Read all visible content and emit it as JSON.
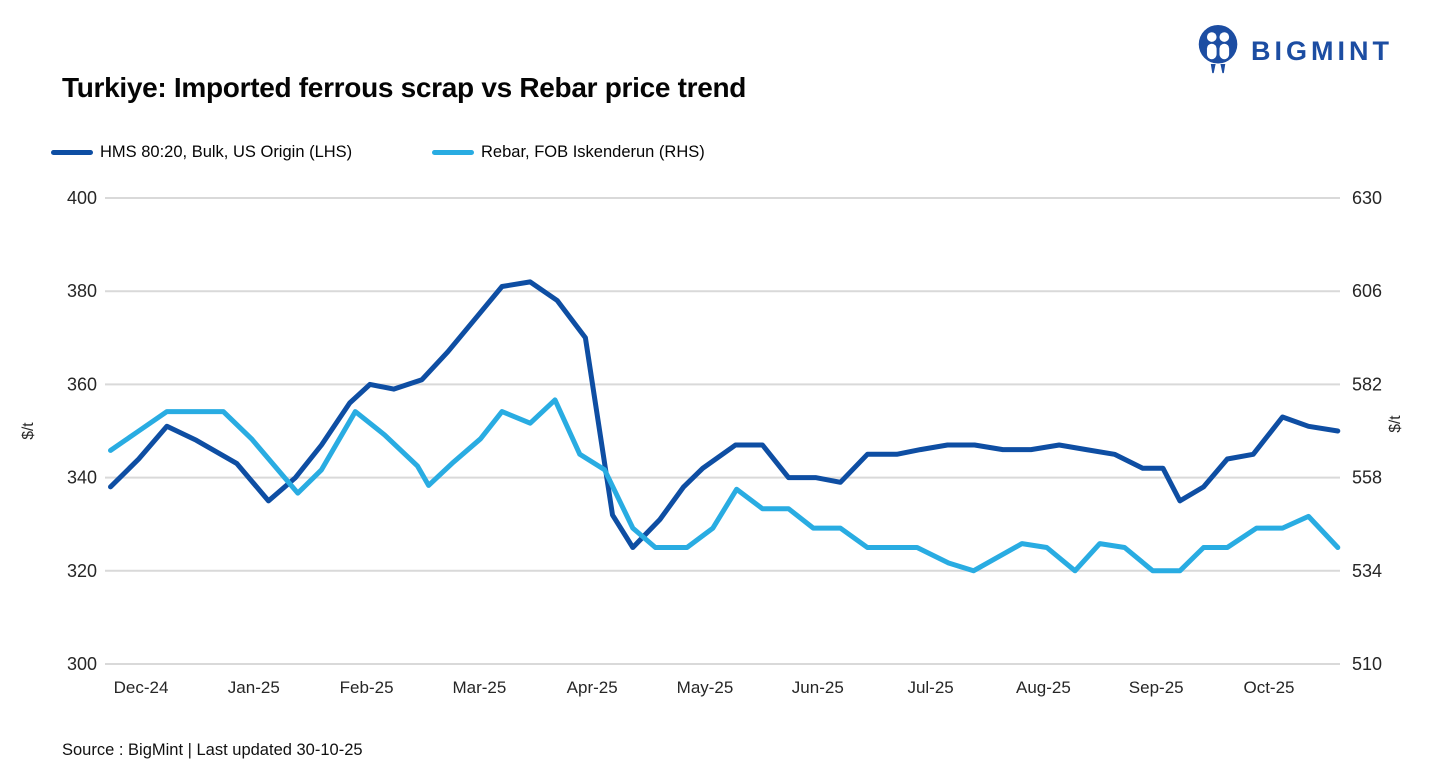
{
  "brand": {
    "name": "BIGMINT",
    "logo_color": "#1C4DA2"
  },
  "title": "Turkiye: Imported ferrous scrap vs Rebar price trend",
  "source": "Source : BigMint | Last updated 30-10-25",
  "chart_data": {
    "type": "line",
    "title": "Turkiye: Imported ferrous scrap vs Rebar price trend",
    "x_unit": "months offset from Dec-24 tick (weekly data points)",
    "x_ticks": [
      "Dec-24",
      "Jan-25",
      "Feb-25",
      "Mar-25",
      "Apr-25",
      "May-25",
      "Jun-25",
      "Jul-25",
      "Aug-25",
      "Sep-25",
      "Oct-25"
    ],
    "grid": true,
    "grid_color": "#D9D9D9",
    "legend_position": "top-left",
    "axes": {
      "left": {
        "label": "$/t",
        "min": 300,
        "max": 400,
        "ticks": [
          400,
          380,
          360,
          340,
          320,
          300
        ]
      },
      "right": {
        "label": "$/t",
        "min": 510,
        "max": 630,
        "ticks": [
          630,
          606,
          582,
          558,
          534,
          510
        ]
      }
    },
    "series": [
      {
        "name": "HMS 80:20, Bulk, US Origin (LHS)",
        "axis": "left",
        "color": "#0E4EA3",
        "points": [
          [
            -0.27,
            338
          ],
          [
            -0.02,
            344
          ],
          [
            0.23,
            351
          ],
          [
            0.49,
            348
          ],
          [
            0.85,
            343
          ],
          [
            1.13,
            335
          ],
          [
            1.37,
            340
          ],
          [
            1.6,
            347
          ],
          [
            1.85,
            356
          ],
          [
            2.03,
            360
          ],
          [
            2.24,
            359
          ],
          [
            2.49,
            361
          ],
          [
            2.72,
            367
          ],
          [
            2.96,
            374
          ],
          [
            3.2,
            381
          ],
          [
            3.45,
            382
          ],
          [
            3.69,
            378
          ],
          [
            3.94,
            370
          ],
          [
            4.18,
            332
          ],
          [
            4.36,
            325
          ],
          [
            4.6,
            331
          ],
          [
            4.81,
            338
          ],
          [
            4.98,
            342
          ],
          [
            5.27,
            347
          ],
          [
            5.51,
            347
          ],
          [
            5.74,
            340
          ],
          [
            5.98,
            340
          ],
          [
            6.2,
            339
          ],
          [
            6.44,
            345
          ],
          [
            6.7,
            345
          ],
          [
            6.91,
            346
          ],
          [
            7.15,
            347
          ],
          [
            7.39,
            347
          ],
          [
            7.64,
            346
          ],
          [
            7.89,
            346
          ],
          [
            8.14,
            347
          ],
          [
            8.38,
            346
          ],
          [
            8.63,
            345
          ],
          [
            8.88,
            342
          ],
          [
            9.06,
            342
          ],
          [
            9.21,
            335
          ],
          [
            9.42,
            338
          ],
          [
            9.63,
            344
          ],
          [
            9.86,
            345
          ],
          [
            10.12,
            353
          ],
          [
            10.35,
            351
          ],
          [
            10.61,
            350
          ]
        ]
      },
      {
        "name": "Rebar, FOB Iskenderun (RHS)",
        "axis": "right",
        "color": "#29ACE2",
        "points": [
          [
            -0.27,
            565
          ],
          [
            -0.02,
            570
          ],
          [
            0.23,
            575
          ],
          [
            0.73,
            575
          ],
          [
            0.98,
            568
          ],
          [
            1.39,
            554
          ],
          [
            1.6,
            560
          ],
          [
            1.9,
            575
          ],
          [
            2.16,
            569
          ],
          [
            2.45,
            561
          ],
          [
            2.55,
            556
          ],
          [
            2.77,
            562
          ],
          [
            3.01,
            568
          ],
          [
            3.2,
            575
          ],
          [
            3.45,
            572
          ],
          [
            3.67,
            578
          ],
          [
            3.89,
            564
          ],
          [
            4.11,
            560
          ],
          [
            4.36,
            545
          ],
          [
            4.56,
            540
          ],
          [
            4.84,
            540
          ],
          [
            5.07,
            545
          ],
          [
            5.28,
            555
          ],
          [
            5.51,
            550
          ],
          [
            5.74,
            550
          ],
          [
            5.96,
            545
          ],
          [
            6.2,
            545
          ],
          [
            6.44,
            540
          ],
          [
            6.88,
            540
          ],
          [
            7.16,
            536
          ],
          [
            7.38,
            534
          ],
          [
            7.81,
            541
          ],
          [
            8.03,
            540
          ],
          [
            8.28,
            534
          ],
          [
            8.5,
            541
          ],
          [
            8.72,
            540
          ],
          [
            8.97,
            534
          ],
          [
            9.21,
            534
          ],
          [
            9.42,
            540
          ],
          [
            9.63,
            540
          ],
          [
            9.89,
            545
          ],
          [
            10.12,
            545
          ],
          [
            10.35,
            548
          ],
          [
            10.61,
            540
          ]
        ]
      }
    ]
  }
}
